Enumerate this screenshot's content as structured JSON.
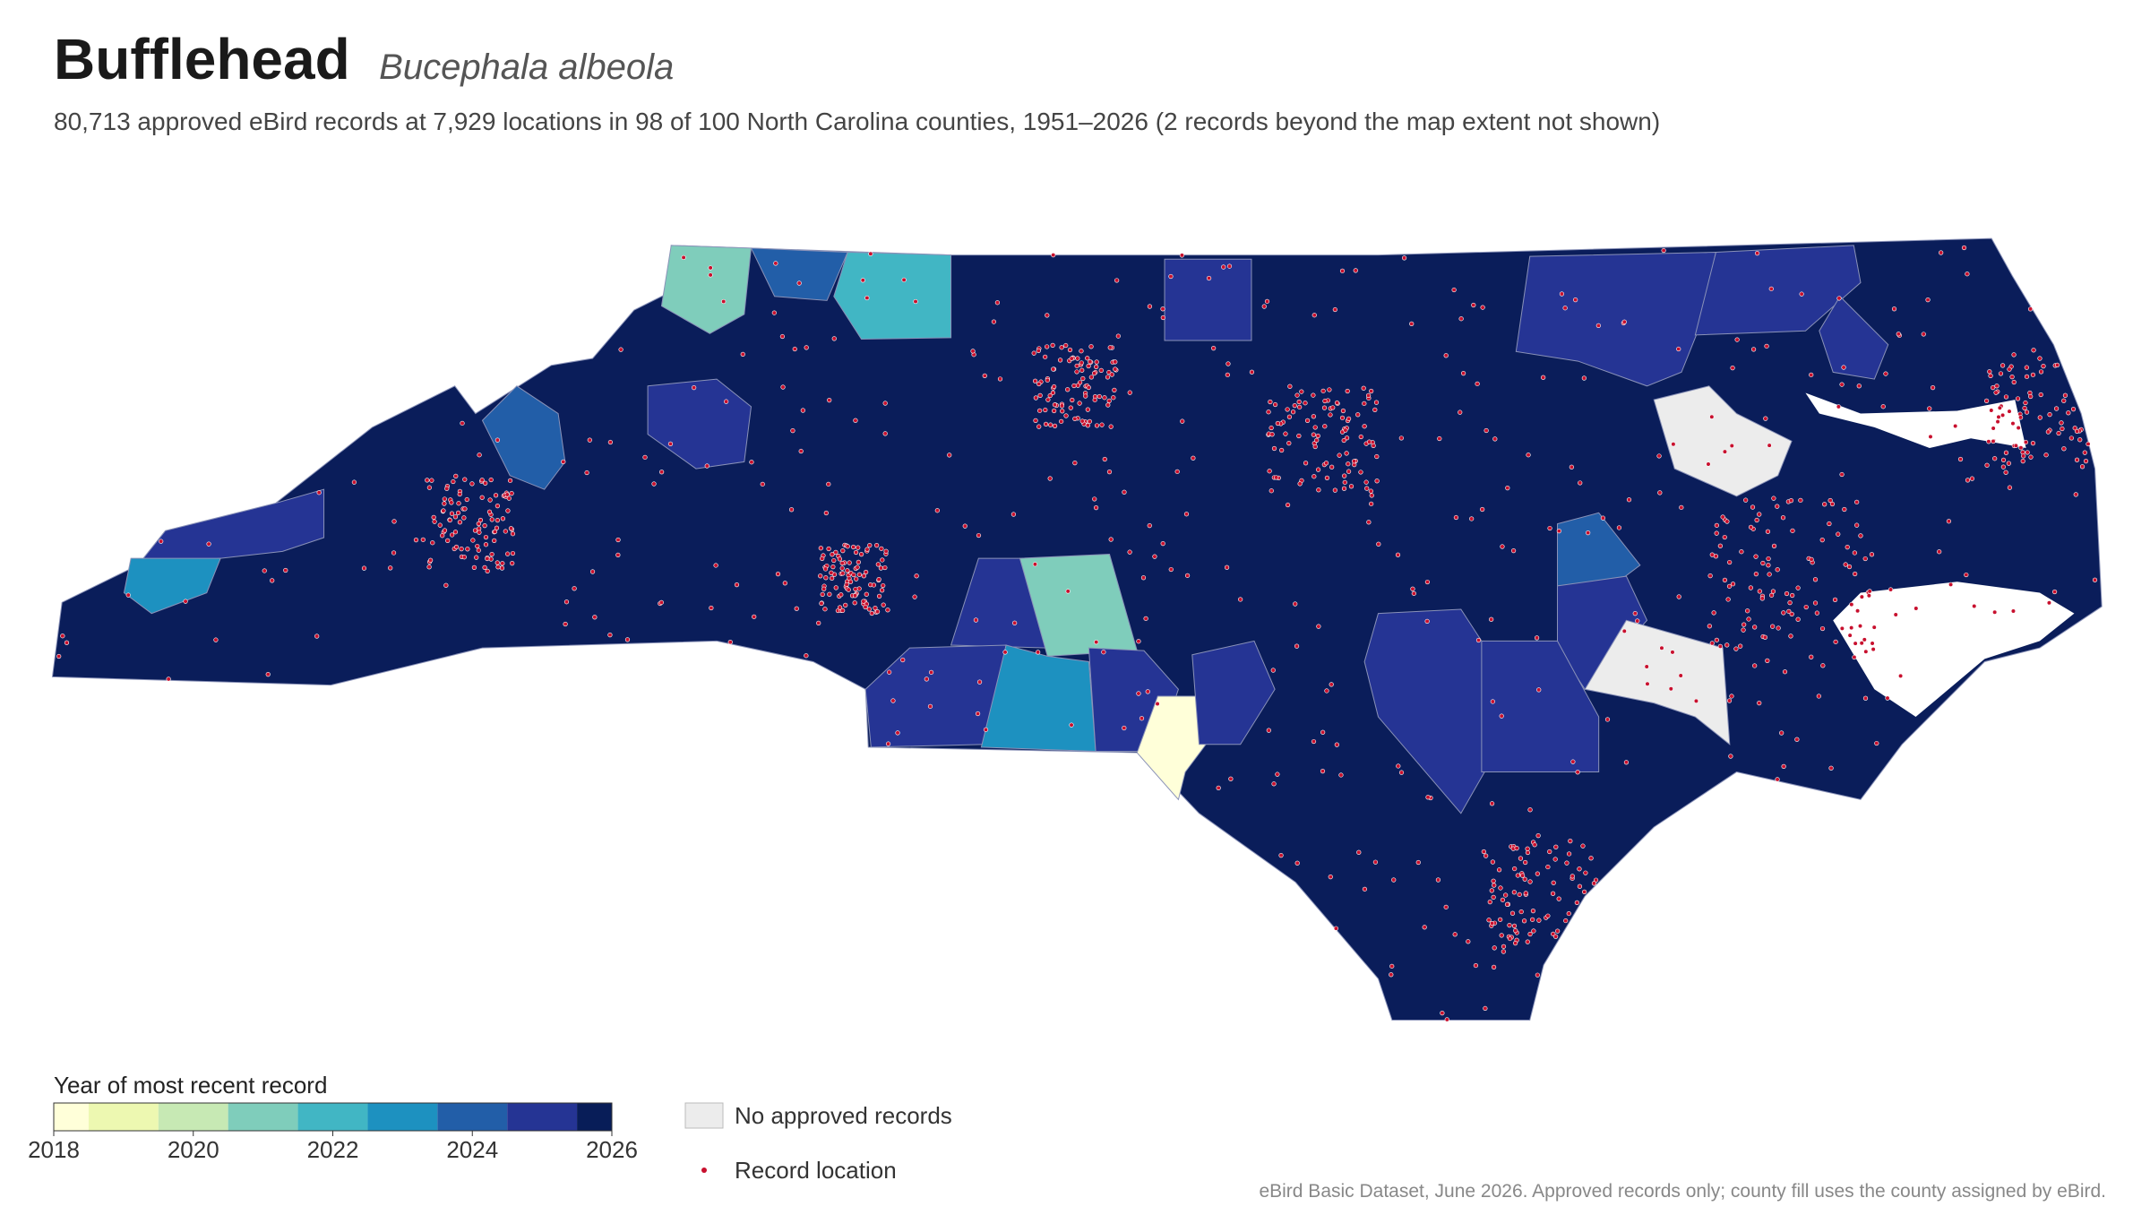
{
  "header": {
    "title": "Bufflehead",
    "scientific_name": "Bucephala albeola",
    "subtitle": "80,713 approved eBird records at 7,929 locations in 98 of 100 North Carolina counties, 1951–2026 (2 records beyond the map extent not shown)"
  },
  "legend": {
    "title": "Year of most recent record",
    "colorbar": {
      "range": [
        2018,
        2026
      ],
      "ticks": [
        2018,
        2020,
        2022,
        2024,
        2026
      ],
      "colors": [
        "#ffffd9",
        "#edf8b1",
        "#c7e9b4",
        "#7fcdbb",
        "#41b6c4",
        "#1d91c0",
        "#225ea8",
        "#253494",
        "#081d58"
      ]
    },
    "no_data_label": "No approved records",
    "no_data_color": "#ececec",
    "record_label": "Record location",
    "record_color": "#c8102e"
  },
  "footer": {
    "source": "eBird Basic Dataset, June 2026. Approved records only; county fill uses the county assigned by eBird."
  }
}
